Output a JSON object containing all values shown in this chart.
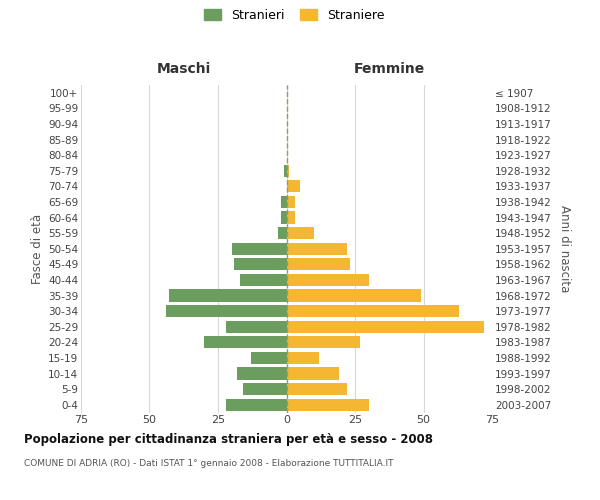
{
  "age_groups": [
    "100+",
    "95-99",
    "90-94",
    "85-89",
    "80-84",
    "75-79",
    "70-74",
    "65-69",
    "60-64",
    "55-59",
    "50-54",
    "45-49",
    "40-44",
    "35-39",
    "30-34",
    "25-29",
    "20-24",
    "15-19",
    "10-14",
    "5-9",
    "0-4"
  ],
  "birth_years": [
    "≤ 1907",
    "1908-1912",
    "1913-1917",
    "1918-1922",
    "1923-1927",
    "1928-1932",
    "1933-1937",
    "1938-1942",
    "1943-1947",
    "1948-1952",
    "1953-1957",
    "1958-1962",
    "1963-1967",
    "1968-1972",
    "1973-1977",
    "1978-1982",
    "1983-1987",
    "1988-1992",
    "1993-1997",
    "1998-2002",
    "2003-2007"
  ],
  "maschi": [
    0,
    0,
    0,
    0,
    0,
    1,
    0,
    2,
    2,
    3,
    20,
    19,
    17,
    43,
    44,
    22,
    30,
    13,
    18,
    16,
    22
  ],
  "femmine": [
    0,
    0,
    0,
    0,
    0,
    1,
    5,
    3,
    3,
    10,
    22,
    23,
    30,
    49,
    63,
    72,
    27,
    12,
    19,
    22,
    30
  ],
  "maschi_color": "#6b9e5e",
  "femmine_color": "#f5b731",
  "title": "Popolazione per cittadinanza straniera per età e sesso - 2008",
  "subtitle": "COMUNE DI ADRIA (RO) - Dati ISTAT 1° gennaio 2008 - Elaborazione TUTTITALIA.IT",
  "xlabel_left": "Maschi",
  "xlabel_right": "Femmine",
  "ylabel_left": "Fasce di età",
  "ylabel_right": "Anni di nascita",
  "legend_stranieri": "Stranieri",
  "legend_straniere": "Straniere",
  "xlim": 75,
  "background_color": "#ffffff",
  "grid_color": "#d8d8d8"
}
